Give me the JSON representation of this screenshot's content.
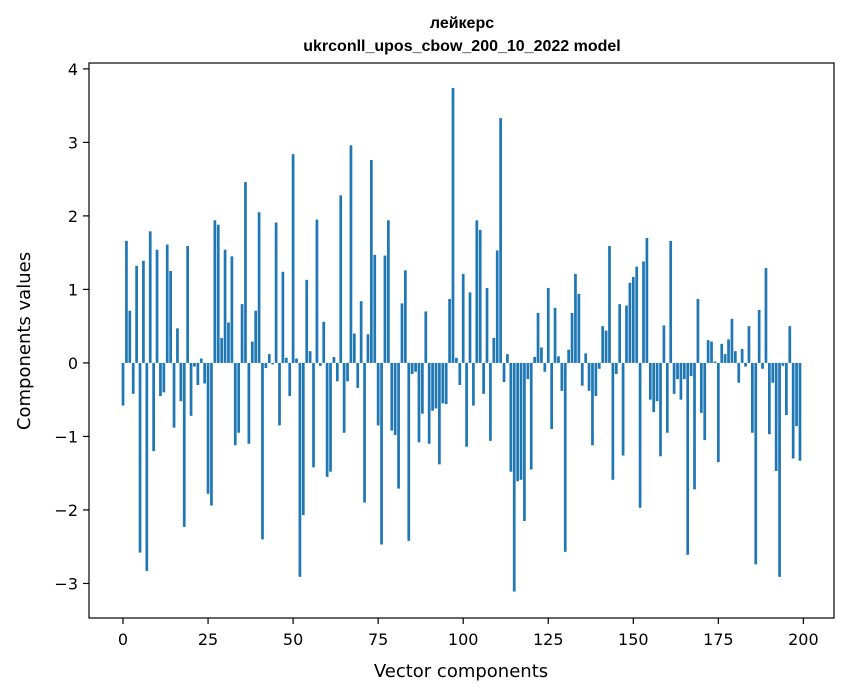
{
  "chart_data": {
    "type": "bar",
    "title_lines": [
      "лейкерс",
      "ukrconll_upos_cbow_200_10_2022 model"
    ],
    "xlabel": "Vector components",
    "ylabel": "Components values",
    "xlim": [
      -10,
      209
    ],
    "ylim": [
      -3.47,
      4.08
    ],
    "xticks": [
      0,
      25,
      50,
      75,
      100,
      125,
      150,
      175,
      200
    ],
    "yticks": [
      -3,
      -2,
      -1,
      0,
      1,
      2,
      3,
      4
    ],
    "grid": false,
    "bar_color": "#1f77b4",
    "values": [
      -0.58,
      1.66,
      0.71,
      -0.42,
      1.32,
      -2.58,
      1.39,
      -2.83,
      1.79,
      -1.2,
      1.54,
      -0.45,
      -0.4,
      1.61,
      1.25,
      -0.88,
      0.47,
      -0.52,
      -2.23,
      1.59,
      -0.72,
      -0.05,
      -0.3,
      0.06,
      -0.28,
      -1.78,
      -1.94,
      1.94,
      1.88,
      0.34,
      1.54,
      0.55,
      1.45,
      -1.12,
      -0.95,
      0.8,
      2.46,
      -1.1,
      0.29,
      0.71,
      2.05,
      -2.4,
      -0.07,
      0.12,
      -0.02,
      1.91,
      -0.85,
      1.24,
      0.07,
      -0.45,
      2.84,
      0.06,
      -2.91,
      -2.07,
      1.13,
      0.16,
      -1.42,
      1.95,
      -0.04,
      0.56,
      -1.55,
      -1.48,
      0.08,
      -0.25,
      2.28,
      -0.95,
      -0.25,
      2.96,
      0.4,
      -0.34,
      0.84,
      -1.9,
      0.39,
      2.76,
      1.47,
      -0.85,
      -2.47,
      1.46,
      1.94,
      -0.92,
      -0.98,
      -1.71,
      0.81,
      1.26,
      -2.42,
      -0.15,
      -0.12,
      -1.08,
      -0.69,
      0.7,
      -1.1,
      -0.65,
      -0.62,
      -1.38,
      -0.55,
      -0.56,
      0.87,
      3.74,
      0.07,
      -0.3,
      1.21,
      -1.14,
      0.96,
      -0.58,
      1.94,
      1.81,
      -0.42,
      1.02,
      -1.06,
      0.34,
      1.53,
      3.33,
      -0.26,
      0.12,
      -1.48,
      -3.11,
      -1.61,
      -1.59,
      -2.15,
      -0.22,
      -1.45,
      0.08,
      0.68,
      0.21,
      -0.12,
      1.02,
      -0.9,
      0.75,
      0.09,
      -0.38,
      -2.57,
      0.18,
      0.68,
      1.21,
      0.94,
      -0.31,
      0.13,
      -0.38,
      -1.12,
      -0.45,
      -0.08,
      0.5,
      0.44,
      1.59,
      -1.59,
      -0.15,
      0.8,
      -1.26,
      0.78,
      1.09,
      1.17,
      1.31,
      -1.97,
      1.38,
      1.7,
      -0.5,
      -0.67,
      -0.52,
      -1.27,
      0.51,
      -0.95,
      1.66,
      -0.42,
      -0.22,
      -0.5,
      -0.22,
      -2.61,
      -0.18,
      -1.72,
      0.87,
      -0.68,
      -1.05,
      0.31,
      0.29,
      0.02,
      -1.35,
      0.26,
      0.12,
      0.32,
      0.6,
      0.16,
      -0.27,
      0.19,
      -0.05,
      0.5,
      -0.95,
      -2.74,
      0.72,
      -0.08,
      1.29,
      -0.97,
      -0.27,
      -1.47,
      -2.91,
      -0.04,
      -0.71,
      0.5,
      -1.3,
      -0.86,
      -1.33
    ]
  }
}
